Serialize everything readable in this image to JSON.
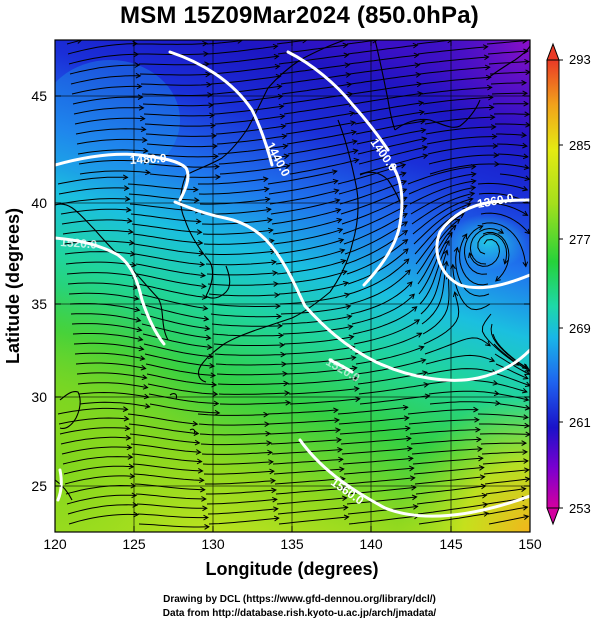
{
  "title": "MSM 15Z09Mar2024 (850.0hPa)",
  "x_axis": {
    "label": "Longitude (degrees)",
    "ticks": [
      "120",
      "125",
      "130",
      "135",
      "140",
      "145",
      "150"
    ],
    "range": [
      120,
      150
    ]
  },
  "y_axis": {
    "label": "Latitude  (degrees)",
    "ticks": [
      "25",
      "30",
      "35",
      "40",
      "45"
    ],
    "range": [
      22.4,
      47.6
    ]
  },
  "colorbar": {
    "ticks": [
      "293",
      "285",
      "277",
      "269",
      "261",
      "253"
    ],
    "range": [
      253,
      293
    ],
    "colors": [
      "#d3009f",
      "#7a00d0",
      "#1a12c9",
      "#1f63ef",
      "#19b6e8",
      "#1ed8a9",
      "#26d23a",
      "#a4df1c",
      "#e5ea12",
      "#f2a21b",
      "#ea3a26"
    ]
  },
  "contours": {
    "color": "#ffffff",
    "labels": [
      "1480.0",
      "1440.0",
      "1400.0",
      "1360.0",
      "1520.0",
      "1520.0",
      "1560.0"
    ]
  },
  "footer": {
    "line1": "Drawing by DCL (https://www.gfd-dennou.org/library/dcl/)",
    "line2": "Data from http://database.rish.kyoto-u.ac.jp/arch/jmadata/"
  }
}
